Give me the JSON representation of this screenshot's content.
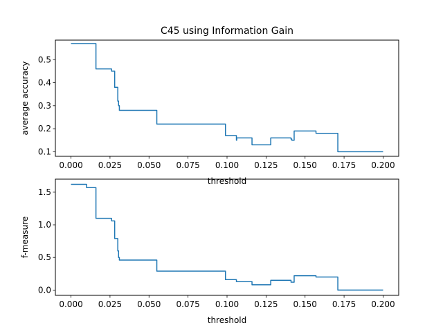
{
  "chart_data": [
    {
      "type": "line",
      "title": "C45 using Information Gain",
      "xlabel": "threshold",
      "ylabel": "average accuracy",
      "xlim": [
        -0.01,
        0.21
      ],
      "ylim": [
        0.08,
        0.585
      ],
      "xticks": [
        0.0,
        0.025,
        0.05,
        0.075,
        0.1,
        0.125,
        0.15,
        0.175,
        0.2
      ],
      "xtick_labels": [
        "0.000",
        "0.025",
        "0.050",
        "0.075",
        "0.100",
        "0.125",
        "0.150",
        "0.175",
        "0.200"
      ],
      "yticks": [
        0.1,
        0.2,
        0.3,
        0.4,
        0.5
      ],
      "ytick_labels": [
        "0.1",
        "0.2",
        "0.3",
        "0.4",
        "0.5"
      ],
      "grid": false,
      "color": "#1f77b4",
      "series": [
        {
          "x": [
            0.0,
            0.016,
            0.016,
            0.026,
            0.026,
            0.028,
            0.028,
            0.03,
            0.03,
            0.0305,
            0.0305,
            0.031,
            0.031,
            0.055,
            0.055,
            0.099,
            0.099,
            0.106,
            0.106,
            0.1062,
            0.1062,
            0.116,
            0.116,
            0.128,
            0.128,
            0.141,
            0.141,
            0.1415,
            0.1415,
            0.143,
            0.143,
            0.157,
            0.157,
            0.171,
            0.171,
            0.2
          ],
          "y": [
            0.57,
            0.57,
            0.46,
            0.46,
            0.45,
            0.45,
            0.38,
            0.38,
            0.32,
            0.32,
            0.3,
            0.3,
            0.28,
            0.28,
            0.22,
            0.22,
            0.17,
            0.17,
            0.15,
            0.15,
            0.16,
            0.16,
            0.13,
            0.13,
            0.16,
            0.16,
            0.155,
            0.155,
            0.15,
            0.15,
            0.19,
            0.19,
            0.18,
            0.18,
            0.1,
            0.1
          ]
        }
      ]
    },
    {
      "type": "line",
      "title": "",
      "xlabel": "threshold",
      "ylabel": "f-measure",
      "xlim": [
        -0.01,
        0.21
      ],
      "ylim": [
        -0.081,
        1.7
      ],
      "xticks": [
        0.0,
        0.025,
        0.05,
        0.075,
        0.1,
        0.125,
        0.15,
        0.175,
        0.2
      ],
      "xtick_labels": [
        "0.000",
        "0.025",
        "0.050",
        "0.075",
        "0.100",
        "0.125",
        "0.150",
        "0.175",
        "0.200"
      ],
      "yticks": [
        0.0,
        0.5,
        1.0,
        1.5
      ],
      "ytick_labels": [
        "0.0",
        "0.5",
        "1.0",
        "1.5"
      ],
      "grid": false,
      "color": "#1f77b4",
      "series": [
        {
          "x": [
            0.0,
            0.01,
            0.01,
            0.016,
            0.016,
            0.026,
            0.026,
            0.028,
            0.028,
            0.03,
            0.03,
            0.0305,
            0.0305,
            0.031,
            0.031,
            0.055,
            0.055,
            0.099,
            0.099,
            0.106,
            0.106,
            0.116,
            0.116,
            0.128,
            0.128,
            0.141,
            0.141,
            0.143,
            0.143,
            0.157,
            0.157,
            0.171,
            0.171,
            0.2
          ],
          "y": [
            1.62,
            1.62,
            1.57,
            1.57,
            1.1,
            1.1,
            1.06,
            1.06,
            0.79,
            0.79,
            0.6,
            0.6,
            0.5,
            0.5,
            0.46,
            0.46,
            0.29,
            0.29,
            0.16,
            0.16,
            0.13,
            0.13,
            0.08,
            0.08,
            0.15,
            0.15,
            0.12,
            0.12,
            0.22,
            0.22,
            0.2,
            0.2,
            0.0,
            0.0
          ]
        }
      ]
    }
  ]
}
